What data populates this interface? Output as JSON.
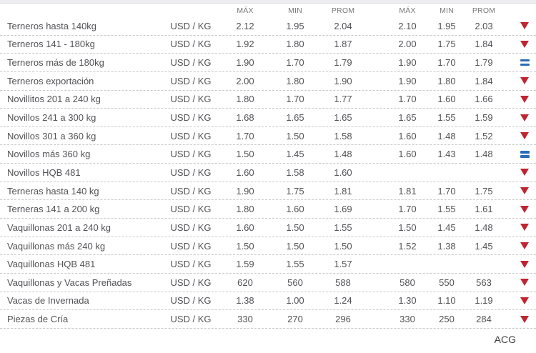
{
  "page": {
    "footer_label": "ACG"
  },
  "colors": {
    "trend_down_red": "#bf2531",
    "trend_equal_blue": "#2a6cba",
    "header_text": "#77787b",
    "body_text": "#525257",
    "separator": "#c9c9c9",
    "top_bar": "#ededef"
  },
  "table": {
    "headers": [
      "MÁX",
      "MIN",
      "PROM",
      "MÁX",
      "MIN",
      "PROM"
    ],
    "rows": [
      {
        "name": "Terneros hasta 140kg",
        "unit": "USD / KG",
        "values": [
          "2.12",
          "1.95",
          "2.04",
          "2.10",
          "1.95",
          "2.03"
        ],
        "trend": "down"
      },
      {
        "name": "Terneros 141 - 180kg",
        "unit": "USD / KG",
        "values": [
          "1.92",
          "1.80",
          "1.87",
          "2.00",
          "1.75",
          "1.84"
        ],
        "trend": "down"
      },
      {
        "name": "Terneros más de 180kg",
        "unit": "USD / KG",
        "values": [
          "1.90",
          "1.70",
          "1.79",
          "1.90",
          "1.70",
          "1.79"
        ],
        "trend": "equal"
      },
      {
        "name": "Terneros exportación",
        "unit": "USD / KG",
        "values": [
          "2.00",
          "1.80",
          "1.90",
          "1.90",
          "1.80",
          "1.84"
        ],
        "trend": "down"
      },
      {
        "name": "Novillitos 201 a 240 kg",
        "unit": "USD / KG",
        "values": [
          "1.80",
          "1.70",
          "1.77",
          "1.70",
          "1.60",
          "1.66"
        ],
        "trend": "down"
      },
      {
        "name": "Novillos 241 a 300 kg",
        "unit": "USD / KG",
        "values": [
          "1.68",
          "1.65",
          "1.65",
          "1.65",
          "1.55",
          "1.59"
        ],
        "trend": "down"
      },
      {
        "name": "Novillos 301 a 360 kg",
        "unit": "USD / KG",
        "values": [
          "1.70",
          "1.50",
          "1.58",
          "1.60",
          "1.48",
          "1.52"
        ],
        "trend": "down"
      },
      {
        "name": "Novillos más 360 kg",
        "unit": "USD / KG",
        "values": [
          "1.50",
          "1.45",
          "1.48",
          "1.60",
          "1.43",
          "1.48"
        ],
        "trend": "equal"
      },
      {
        "name": "Novillos HQB 481",
        "unit": "USD / KG",
        "values": [
          "1.60",
          "1.58",
          "1.60",
          "",
          "",
          ""
        ],
        "trend": "down"
      },
      {
        "name": "Terneras hasta 140 kg",
        "unit": "USD / KG",
        "values": [
          "1.90",
          "1.75",
          "1.81",
          "1.81",
          "1.70",
          "1.75"
        ],
        "trend": "down"
      },
      {
        "name": "Terneras 141 a 200 kg",
        "unit": "USD / KG",
        "values": [
          "1.80",
          "1.60",
          "1.69",
          "1.70",
          "1.55",
          "1.61"
        ],
        "trend": "down"
      },
      {
        "name": "Vaquillonas 201 a 240 kg",
        "unit": "USD / KG",
        "values": [
          "1.60",
          "1.50",
          "1.55",
          "1.50",
          "1.45",
          "1.48"
        ],
        "trend": "down"
      },
      {
        "name": "Vaquillonas más 240 kg",
        "unit": "USD / KG",
        "values": [
          "1.50",
          "1.50",
          "1.50",
          "1.52",
          "1.38",
          "1.45"
        ],
        "trend": "down"
      },
      {
        "name": "Vaquillonas HQB 481",
        "unit": "USD / KG",
        "values": [
          "1.59",
          "1.55",
          "1.57",
          "",
          "",
          ""
        ],
        "trend": "down"
      },
      {
        "name": "Vaquillonas y Vacas Preñadas",
        "unit": "USD / KG",
        "values": [
          "620",
          "560",
          "588",
          "580",
          "550",
          "563"
        ],
        "trend": "down"
      },
      {
        "name": "Vacas de Invernada",
        "unit": "USD / KG",
        "values": [
          "1.38",
          "1.00",
          "1.24",
          "1.30",
          "1.10",
          "1.19"
        ],
        "trend": "down"
      },
      {
        "name": "Piezas de Cría",
        "unit": "USD / KG",
        "values": [
          "330",
          "270",
          "296",
          "330",
          "250",
          "284"
        ],
        "trend": "down"
      }
    ]
  }
}
